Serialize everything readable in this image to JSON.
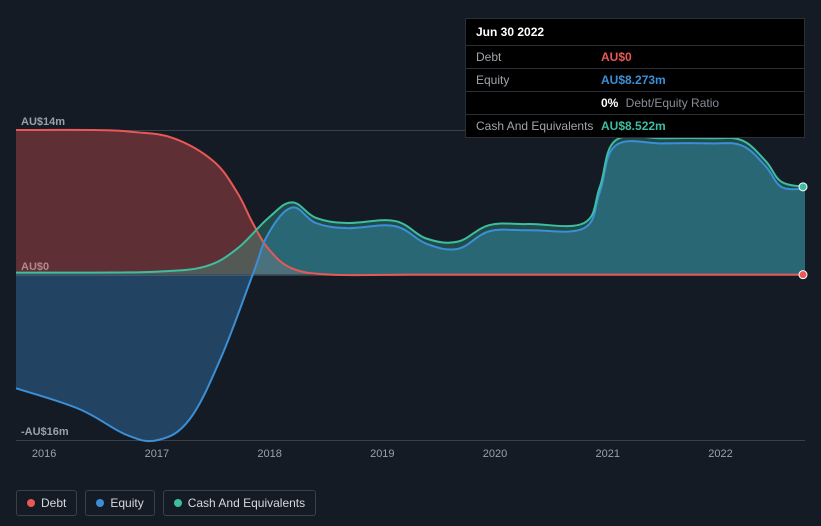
{
  "tooltip": {
    "date": "Jun 30 2022",
    "rows": [
      {
        "label": "Debt",
        "value": "AU$0",
        "color": "#e85856"
      },
      {
        "label": "Equity",
        "value": "AU$8.273m",
        "color": "#3b8fd6"
      },
      {
        "label": "",
        "value": "0%",
        "suffix": "Debt/Equity Ratio",
        "color": "#ffffff"
      },
      {
        "label": "Cash And Equivalents",
        "value": "AU$8.522m",
        "color": "#3dbea0"
      }
    ]
  },
  "chart": {
    "type": "area",
    "background": "#151b24",
    "grid_color": "#3a4049",
    "ylim": [
      -16,
      14
    ],
    "y_ticks": [
      {
        "v": 14,
        "label": "AU$14m"
      },
      {
        "v": 0,
        "label": "AU$0"
      },
      {
        "v": -16,
        "label": "-AU$16m"
      }
    ],
    "x_ticks": [
      "2016",
      "2017",
      "2018",
      "2019",
      "2020",
      "2021",
      "2022"
    ],
    "series": [
      {
        "name": "Debt",
        "color": "#e85856",
        "fill_opacity": 0.35,
        "stroke_width": 2,
        "points": [
          {
            "x": 0.0,
            "y": 14.0
          },
          {
            "x": 0.1,
            "y": 14.0
          },
          {
            "x": 0.15,
            "y": 13.8
          },
          {
            "x": 0.2,
            "y": 13.2
          },
          {
            "x": 0.25,
            "y": 11.0
          },
          {
            "x": 0.28,
            "y": 8.0
          },
          {
            "x": 0.3,
            "y": 5.0
          },
          {
            "x": 0.32,
            "y": 2.5
          },
          {
            "x": 0.35,
            "y": 0.6
          },
          {
            "x": 0.4,
            "y": 0.0
          },
          {
            "x": 0.5,
            "y": 0.0
          },
          {
            "x": 0.6,
            "y": 0.0
          },
          {
            "x": 0.7,
            "y": 0.0
          },
          {
            "x": 0.8,
            "y": 0.0
          },
          {
            "x": 0.9,
            "y": 0.0
          },
          {
            "x": 1.0,
            "y": 0.0
          }
        ]
      },
      {
        "name": "Equity",
        "color": "#3b8fd6",
        "fill_opacity": 0.35,
        "stroke_width": 2,
        "points": [
          {
            "x": 0.0,
            "y": -11.0
          },
          {
            "x": 0.08,
            "y": -13.0
          },
          {
            "x": 0.14,
            "y": -15.5
          },
          {
            "x": 0.18,
            "y": -16.0
          },
          {
            "x": 0.22,
            "y": -14.0
          },
          {
            "x": 0.26,
            "y": -8.0
          },
          {
            "x": 0.3,
            "y": 0.0
          },
          {
            "x": 0.32,
            "y": 4.0
          },
          {
            "x": 0.35,
            "y": 6.5
          },
          {
            "x": 0.38,
            "y": 5.0
          },
          {
            "x": 0.42,
            "y": 4.5
          },
          {
            "x": 0.48,
            "y": 4.7
          },
          {
            "x": 0.52,
            "y": 3.0
          },
          {
            "x": 0.56,
            "y": 2.5
          },
          {
            "x": 0.6,
            "y": 4.2
          },
          {
            "x": 0.65,
            "y": 4.3
          },
          {
            "x": 0.72,
            "y": 4.5
          },
          {
            "x": 0.74,
            "y": 8.0
          },
          {
            "x": 0.76,
            "y": 12.5
          },
          {
            "x": 0.82,
            "y": 12.7
          },
          {
            "x": 0.88,
            "y": 12.7
          },
          {
            "x": 0.92,
            "y": 12.5
          },
          {
            "x": 0.95,
            "y": 10.5
          },
          {
            "x": 0.97,
            "y": 8.5
          },
          {
            "x": 1.0,
            "y": 8.3
          }
        ]
      },
      {
        "name": "Cash And Equivalents",
        "color": "#3dbea0",
        "fill_opacity": 0.3,
        "stroke_width": 2,
        "points": [
          {
            "x": 0.0,
            "y": 0.2
          },
          {
            "x": 0.1,
            "y": 0.2
          },
          {
            "x": 0.18,
            "y": 0.3
          },
          {
            "x": 0.24,
            "y": 0.8
          },
          {
            "x": 0.28,
            "y": 2.5
          },
          {
            "x": 0.32,
            "y": 5.5
          },
          {
            "x": 0.35,
            "y": 7.0
          },
          {
            "x": 0.38,
            "y": 5.5
          },
          {
            "x": 0.42,
            "y": 5.0
          },
          {
            "x": 0.48,
            "y": 5.2
          },
          {
            "x": 0.52,
            "y": 3.5
          },
          {
            "x": 0.56,
            "y": 3.2
          },
          {
            "x": 0.6,
            "y": 4.8
          },
          {
            "x": 0.65,
            "y": 4.9
          },
          {
            "x": 0.72,
            "y": 5.0
          },
          {
            "x": 0.74,
            "y": 8.5
          },
          {
            "x": 0.76,
            "y": 13.0
          },
          {
            "x": 0.82,
            "y": 13.2
          },
          {
            "x": 0.88,
            "y": 13.2
          },
          {
            "x": 0.92,
            "y": 13.0
          },
          {
            "x": 0.95,
            "y": 11.0
          },
          {
            "x": 0.97,
            "y": 9.0
          },
          {
            "x": 1.0,
            "y": 8.5
          }
        ]
      }
    ],
    "end_markers": [
      {
        "color": "#e85856",
        "y": 0.0
      },
      {
        "color": "#3dbea0",
        "y": 8.5
      }
    ]
  },
  "legend": [
    {
      "label": "Debt",
      "color": "#e85856"
    },
    {
      "label": "Equity",
      "color": "#3b8fd6"
    },
    {
      "label": "Cash And Equivalents",
      "color": "#3dbea0"
    }
  ]
}
